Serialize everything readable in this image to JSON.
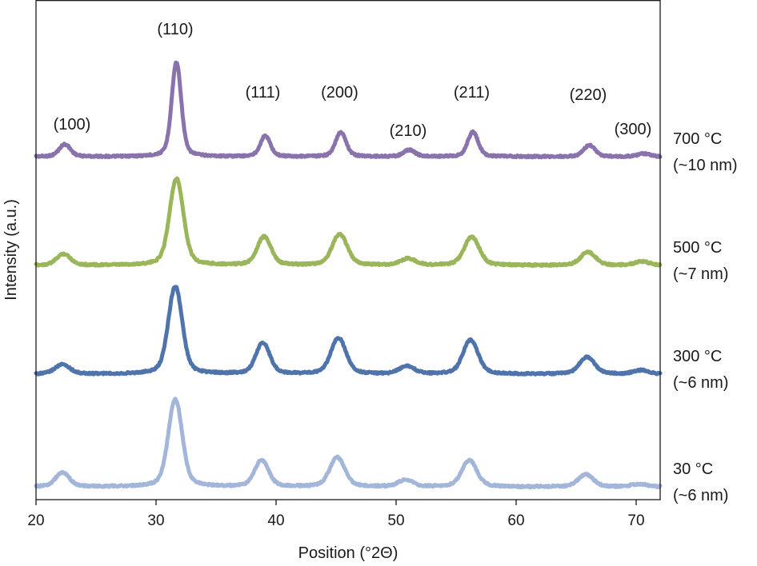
{
  "chart_data": {
    "type": "line",
    "title": "",
    "xlabel": "Position (°2Θ)",
    "ylabel": "Intensity (a.u.)",
    "xlim": [
      20,
      72
    ],
    "xticks": [
      20,
      30,
      40,
      50,
      60,
      70
    ],
    "yticks": [],
    "grid": false,
    "peaks": [
      {
        "label": "(100)",
        "x": 22.2
      },
      {
        "label": "(110)",
        "x": 31.6
      },
      {
        "label": "(111)",
        "x": 38.9
      },
      {
        "label": "(200)",
        "x": 45.3
      },
      {
        "label": "(210)",
        "x": 51.0
      },
      {
        "label": "(211)",
        "x": 56.3
      },
      {
        "label": "(220)",
        "x": 66.0
      },
      {
        "label": "(300)",
        "x": 70.5
      }
    ],
    "series": [
      {
        "name": "700 °C",
        "size": "(~10 nm)",
        "color": "#8a73ad",
        "baseline_offset": 3,
        "peaks": [
          {
            "x": 22.4,
            "h": 0.13,
            "w": 0.45
          },
          {
            "x": 31.7,
            "h": 1.0,
            "w": 0.38
          },
          {
            "x": 39.1,
            "h": 0.22,
            "w": 0.4
          },
          {
            "x": 45.4,
            "h": 0.26,
            "w": 0.42
          },
          {
            "x": 51.1,
            "h": 0.07,
            "w": 0.45
          },
          {
            "x": 56.4,
            "h": 0.26,
            "w": 0.42
          },
          {
            "x": 66.1,
            "h": 0.12,
            "w": 0.45
          },
          {
            "x": 70.6,
            "h": 0.03,
            "w": 0.5
          }
        ]
      },
      {
        "name": "500 °C",
        "size": "(~7 nm)",
        "color": "#9bb55a",
        "baseline_offset": 2,
        "peaks": [
          {
            "x": 22.3,
            "h": 0.12,
            "w": 0.55
          },
          {
            "x": 31.7,
            "h": 0.92,
            "w": 0.55
          },
          {
            "x": 39.0,
            "h": 0.3,
            "w": 0.55
          },
          {
            "x": 45.3,
            "h": 0.33,
            "w": 0.6
          },
          {
            "x": 51.0,
            "h": 0.07,
            "w": 0.6
          },
          {
            "x": 56.3,
            "h": 0.3,
            "w": 0.6
          },
          {
            "x": 66.0,
            "h": 0.14,
            "w": 0.6
          },
          {
            "x": 70.5,
            "h": 0.04,
            "w": 0.6
          }
        ]
      },
      {
        "name": "300 °C",
        "size": "(~6 nm)",
        "color": "#4f74ac",
        "baseline_offset": 1,
        "peaks": [
          {
            "x": 22.2,
            "h": 0.1,
            "w": 0.6
          },
          {
            "x": 31.6,
            "h": 0.93,
            "w": 0.55
          },
          {
            "x": 38.9,
            "h": 0.33,
            "w": 0.55
          },
          {
            "x": 45.2,
            "h": 0.38,
            "w": 0.6
          },
          {
            "x": 50.9,
            "h": 0.08,
            "w": 0.6
          },
          {
            "x": 56.2,
            "h": 0.36,
            "w": 0.6
          },
          {
            "x": 65.9,
            "h": 0.18,
            "w": 0.6
          },
          {
            "x": 70.4,
            "h": 0.04,
            "w": 0.6
          }
        ]
      },
      {
        "name": "30 °C",
        "size": "(~6 nm)",
        "color": "#a3b6da",
        "baseline_offset": 0,
        "peaks": [
          {
            "x": 22.2,
            "h": 0.15,
            "w": 0.55
          },
          {
            "x": 31.6,
            "h": 0.93,
            "w": 0.55
          },
          {
            "x": 38.8,
            "h": 0.28,
            "w": 0.55
          },
          {
            "x": 45.1,
            "h": 0.31,
            "w": 0.6
          },
          {
            "x": 50.8,
            "h": 0.07,
            "w": 0.6
          },
          {
            "x": 56.1,
            "h": 0.28,
            "w": 0.6
          },
          {
            "x": 65.8,
            "h": 0.13,
            "w": 0.6
          },
          {
            "x": 70.3,
            "h": 0.03,
            "w": 0.6
          }
        ]
      }
    ]
  }
}
